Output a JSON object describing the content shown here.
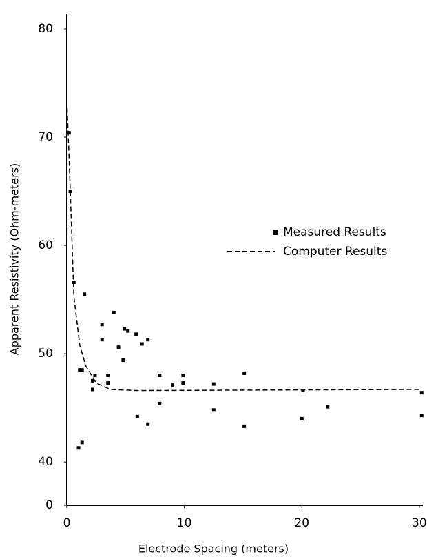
{
  "chart_data": {
    "type": "scatter",
    "x_label": "Electrode Spacing (meters)",
    "y_label": "Apparent Resistivity (Ohm-meters)",
    "xlim": [
      0,
      30.3
    ],
    "ylim": [
      36,
      81.4
    ],
    "xticks": [
      0,
      10,
      20,
      30
    ],
    "yticks": [
      {
        "value": 36,
        "label": "0"
      },
      40,
      50,
      60,
      70,
      80
    ],
    "legend": "right",
    "series": [
      {
        "name": "Measured Results",
        "color": "#000000",
        "marker": "square",
        "x": [
          0.2,
          0.3,
          0.6,
          1.5,
          1.1,
          1.3,
          1.0,
          1.3,
          2.4,
          2.2,
          2.2,
          3.0,
          3.0,
          3.5,
          3.5,
          4.0,
          4.4,
          4.8,
          4.9,
          5.2,
          5.9,
          6.0,
          6.4,
          6.9,
          6.9,
          7.9,
          7.9,
          9.0,
          9.9,
          9.9,
          12.5,
          12.5,
          15.1,
          15.1,
          20.1,
          20.0,
          22.2,
          30.2,
          30.2
        ],
        "values": [
          70.4,
          65,
          56.6,
          55.5,
          48.5,
          48.5,
          41.3,
          41.8,
          48,
          47.5,
          46.7,
          52.7,
          51.3,
          48,
          47.3,
          53.8,
          50.6,
          49.4,
          52.3,
          52.1,
          51.8,
          44.2,
          50.9,
          51.3,
          43.5,
          48,
          45.4,
          47.1,
          48,
          47.3,
          47.2,
          44.8,
          48.2,
          43.3,
          46.6,
          44,
          45.1,
          46.4,
          44.3
        ]
      },
      {
        "name": "Computer Results",
        "color": "#000000",
        "line_style": "dashed",
        "x": [
          0,
          0.2,
          0.4,
          0.6,
          1.1,
          1.6,
          2.5,
          3.7,
          6,
          30.1
        ],
        "values": [
          73.4,
          68,
          61.7,
          55.3,
          50.8,
          48.9,
          47.3,
          46.7,
          46.6,
          46.7
        ]
      }
    ]
  }
}
